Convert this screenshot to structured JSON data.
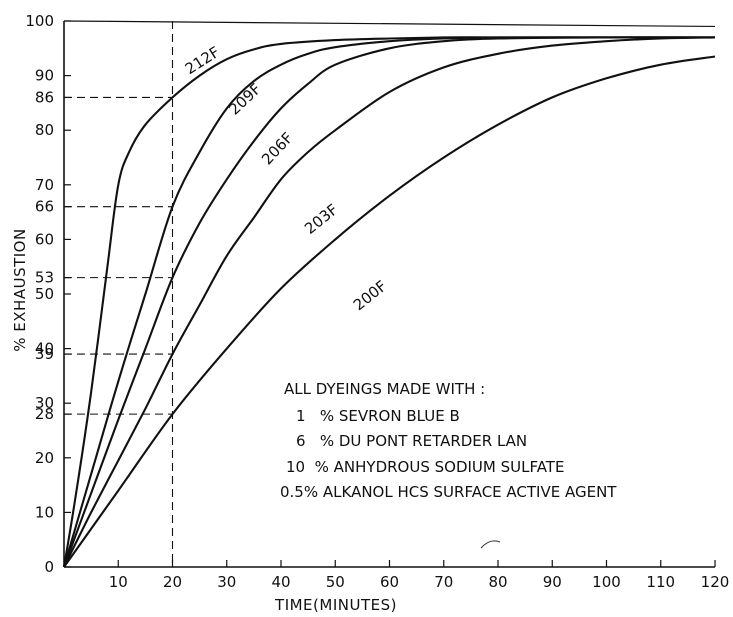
{
  "chart_data": {
    "type": "line",
    "xlabel": "TIME(MINUTES)",
    "ylabel": "% EXHAUSTION",
    "xlim": [
      0,
      120
    ],
    "ylim": [
      0,
      100
    ],
    "x_ticks": [
      10,
      20,
      30,
      40,
      50,
      60,
      70,
      80,
      90,
      100,
      110,
      120
    ],
    "y_ticks": [
      0,
      10,
      20,
      28,
      30,
      39,
      40,
      50,
      53,
      60,
      66,
      70,
      80,
      86,
      90,
      100
    ],
    "grid": false,
    "reference_lines": {
      "x": 20,
      "y": [
        86,
        66,
        53,
        39,
        28
      ]
    },
    "series": [
      {
        "name": "212F",
        "points": [
          [
            0,
            0
          ],
          [
            2,
            12
          ],
          [
            5,
            32
          ],
          [
            8,
            55
          ],
          [
            10,
            70
          ],
          [
            12,
            76
          ],
          [
            15,
            81
          ],
          [
            20,
            86
          ],
          [
            25,
            90
          ],
          [
            30,
            93
          ],
          [
            35,
            94.8
          ],
          [
            40,
            95.8
          ],
          [
            50,
            96.5
          ],
          [
            60,
            96.8
          ],
          [
            70,
            97
          ],
          [
            80,
            97
          ],
          [
            100,
            97
          ],
          [
            120,
            97
          ]
        ],
        "label_at": [
          26,
          92
        ]
      },
      {
        "name": "209F",
        "points": [
          [
            0,
            0
          ],
          [
            5,
            17
          ],
          [
            10,
            34
          ],
          [
            15,
            50
          ],
          [
            20,
            66
          ],
          [
            25,
            76
          ],
          [
            30,
            84
          ],
          [
            35,
            89
          ],
          [
            40,
            92
          ],
          [
            45,
            94
          ],
          [
            50,
            95.2
          ],
          [
            60,
            96.3
          ],
          [
            70,
            96.8
          ],
          [
            80,
            97
          ],
          [
            100,
            97
          ],
          [
            120,
            97
          ]
        ],
        "label_at": [
          34,
          85
        ]
      },
      {
        "name": "206F",
        "points": [
          [
            0,
            0
          ],
          [
            5,
            13.5
          ],
          [
            10,
            27
          ],
          [
            15,
            40
          ],
          [
            20,
            53
          ],
          [
            25,
            63
          ],
          [
            30,
            71
          ],
          [
            35,
            78
          ],
          [
            40,
            84
          ],
          [
            45,
            88.5
          ],
          [
            50,
            92
          ],
          [
            60,
            95
          ],
          [
            70,
            96.3
          ],
          [
            80,
            96.8
          ],
          [
            100,
            97
          ],
          [
            120,
            97
          ]
        ],
        "label_at": [
          40,
          76
        ]
      },
      {
        "name": "203F",
        "points": [
          [
            0,
            0
          ],
          [
            5,
            10
          ],
          [
            10,
            19.5
          ],
          [
            15,
            29
          ],
          [
            20,
            39
          ],
          [
            25,
            48
          ],
          [
            30,
            57
          ],
          [
            35,
            64
          ],
          [
            40,
            71
          ],
          [
            45,
            76
          ],
          [
            50,
            80
          ],
          [
            60,
            87
          ],
          [
            70,
            91.5
          ],
          [
            80,
            94
          ],
          [
            90,
            95.5
          ],
          [
            100,
            96.3
          ],
          [
            110,
            96.8
          ],
          [
            120,
            97
          ]
        ],
        "label_at": [
          48,
          63
        ]
      },
      {
        "name": "200F",
        "points": [
          [
            0,
            0
          ],
          [
            10,
            14
          ],
          [
            20,
            28
          ],
          [
            30,
            40
          ],
          [
            40,
            51
          ],
          [
            50,
            60
          ],
          [
            60,
            68
          ],
          [
            70,
            75
          ],
          [
            80,
            81
          ],
          [
            90,
            86
          ],
          [
            100,
            89.5
          ],
          [
            110,
            92
          ],
          [
            120,
            93.5
          ]
        ],
        "label_at": [
          57,
          49
        ]
      }
    ],
    "annotations": [
      "ALL DYEINGS MADE WITH :",
      "1   % SEVRON BLUE B",
      "6   % DU PONT RETARDER LAN",
      "10  % ANHYDROUS SODIUM SULFATE",
      "0.5% ALKANOL HCS SURFACE ACTIVE AGENT"
    ]
  },
  "colors": {
    "ink": "#111111",
    "background": "#ffffff"
  }
}
